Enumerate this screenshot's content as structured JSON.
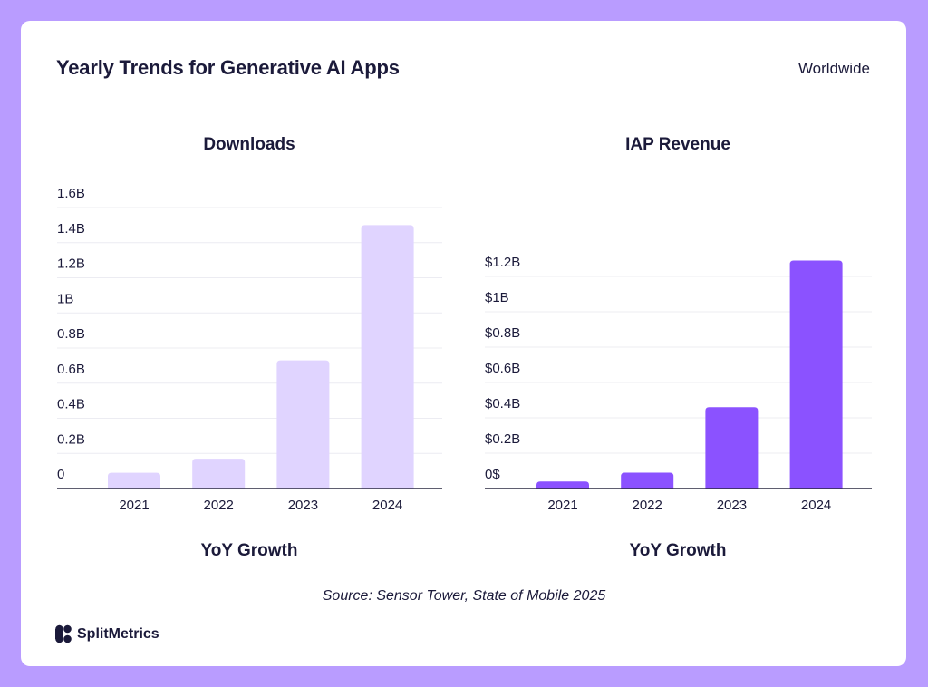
{
  "title": "Yearly Trends for Generative AI Apps",
  "region": "Worldwide",
  "source": "Source: Sensor Tower, State of Mobile 2025",
  "brand": "SplitMetrics",
  "chart_data": [
    {
      "type": "bar",
      "title": "Downloads",
      "subtitle_below": "YoY Growth",
      "categories": [
        "2021",
        "2022",
        "2023",
        "2024"
      ],
      "values": [
        0.09,
        0.17,
        0.73,
        1.5
      ],
      "unit": "B",
      "ylim": [
        0,
        1.6
      ],
      "yticks": [
        0,
        0.2,
        0.4,
        0.6,
        0.8,
        1,
        1.2,
        1.4,
        1.6
      ],
      "ytick_labels": [
        "0",
        "0.2B",
        "0.4B",
        "0.6B",
        "0.8B",
        "1B",
        "1.2B",
        "1.4B",
        "1.6B"
      ],
      "grid": true,
      "color": "#e0d4ff"
    },
    {
      "type": "bar",
      "title": "IAP Revenue",
      "subtitle_below": "YoY Growth",
      "categories": [
        "2021",
        "2022",
        "2023",
        "2024"
      ],
      "values": [
        0.04,
        0.09,
        0.46,
        1.29
      ],
      "unit": "$B",
      "ylim": [
        0,
        1.2
      ],
      "yticks": [
        0,
        0.2,
        0.4,
        0.6,
        0.8,
        1,
        1.2
      ],
      "ytick_labels": [
        "0$",
        "$0.2B",
        "$0.4B",
        "$0.6B",
        "$0.8B",
        "$1B",
        "$1.2B"
      ],
      "grid": true,
      "color": "#8b52ff"
    }
  ]
}
